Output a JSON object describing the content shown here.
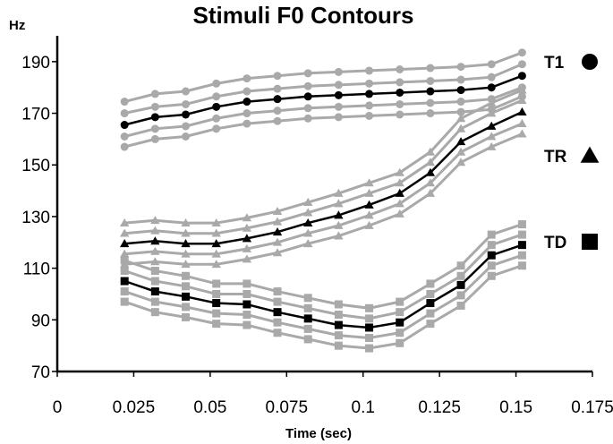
{
  "chart_data": {
    "type": "line",
    "title": "Stimuli F0 Contours",
    "xlabel": "Time (sec)",
    "ylabel": "Hz",
    "xlim": [
      0,
      0.175
    ],
    "ylim": [
      70,
      200
    ],
    "x_tick_labels": [
      "0",
      "0.025",
      "0.05",
      "0.075",
      "0.1",
      "0.125",
      "0.15",
      "0.175"
    ],
    "x_ticks": [
      0,
      0.025,
      0.05,
      0.075,
      0.1,
      0.125,
      0.15,
      0.175
    ],
    "y_tick_labels": [
      "70",
      "90",
      "110",
      "130",
      "150",
      "170",
      "190"
    ],
    "y_ticks": [
      70,
      90,
      110,
      130,
      150,
      170,
      190
    ],
    "x": [
      0.022,
      0.032,
      0.042,
      0.052,
      0.062,
      0.072,
      0.082,
      0.092,
      0.102,
      0.112,
      0.122,
      0.132,
      0.142,
      0.152
    ],
    "legend": [
      {
        "label": "T1",
        "marker": "circle"
      },
      {
        "label": "TR",
        "marker": "triangle"
      },
      {
        "label": "TD",
        "marker": "square"
      }
    ],
    "series": [
      {
        "group": "T1",
        "marker": "circle",
        "color": "#a9a9a9",
        "values": [
          174.5,
          177.5,
          178.5,
          181.5,
          183.5,
          184.5,
          185.5,
          186,
          186.5,
          187,
          187.5,
          188,
          189,
          193.5
        ]
      },
      {
        "group": "T1",
        "marker": "circle",
        "color": "#a9a9a9",
        "values": [
          170,
          172.5,
          173.5,
          176.5,
          178.5,
          179.5,
          180.5,
          181,
          181.5,
          182,
          182.5,
          183,
          184,
          189
        ]
      },
      {
        "group": "T1",
        "marker": "circle",
        "color": "#000000",
        "values": [
          165.5,
          168.5,
          169.5,
          172.5,
          174.5,
          175.5,
          176.5,
          177,
          177.5,
          178,
          178.5,
          179,
          180,
          184.5
        ]
      },
      {
        "group": "T1",
        "marker": "circle",
        "color": "#a9a9a9",
        "values": [
          161,
          164,
          165,
          168,
          170,
          171,
          172,
          172.5,
          173,
          173.5,
          174,
          174.5,
          175.5,
          180
        ]
      },
      {
        "group": "T1",
        "marker": "circle",
        "color": "#a9a9a9",
        "values": [
          157,
          160,
          161,
          164,
          166,
          167,
          168,
          168.5,
          169,
          169.5,
          170,
          170.5,
          171.5,
          176.5
        ]
      },
      {
        "group": "TR",
        "marker": "triangle",
        "color": "#a9a9a9",
        "values": [
          127.5,
          128.5,
          127.5,
          127.5,
          129.5,
          132,
          135.5,
          139,
          143,
          147,
          155,
          168,
          174,
          179
        ]
      },
      {
        "group": "TR",
        "marker": "triangle",
        "color": "#a9a9a9",
        "values": [
          123.5,
          124.5,
          123.5,
          123.5,
          125.5,
          128,
          131.5,
          135,
          139,
          143,
          151,
          164,
          170,
          175
        ]
      },
      {
        "group": "TR",
        "marker": "triangle",
        "color": "#000000",
        "values": [
          119.5,
          120.5,
          119.5,
          119.5,
          121.5,
          124,
          127.5,
          130.5,
          134.5,
          139,
          147,
          159,
          165,
          170.5
        ]
      },
      {
        "group": "TR",
        "marker": "triangle",
        "color": "#a9a9a9",
        "values": [
          115.5,
          116.5,
          115.5,
          115.5,
          117.5,
          120,
          123.5,
          126.5,
          130.5,
          135,
          143,
          155,
          161,
          166
        ]
      },
      {
        "group": "TR",
        "marker": "triangle",
        "color": "#a9a9a9",
        "values": [
          111.5,
          112.5,
          111.5,
          111.5,
          113.5,
          116,
          119.5,
          122.5,
          126.5,
          131,
          139,
          151,
          157,
          162
        ]
      },
      {
        "group": "TD",
        "marker": "square",
        "color": "#a9a9a9",
        "values": [
          113,
          109,
          107,
          104,
          104,
          101,
          98.5,
          96,
          94.5,
          97,
          104,
          111,
          123,
          127
        ]
      },
      {
        "group": "TD",
        "marker": "square",
        "color": "#a9a9a9",
        "values": [
          109,
          105,
          103,
          100,
          100,
          97,
          94.5,
          92,
          90.5,
          93,
          100,
          107,
          119,
          123
        ]
      },
      {
        "group": "TD",
        "marker": "square",
        "color": "#000000",
        "values": [
          105,
          101,
          99,
          96.5,
          96,
          93,
          90.5,
          88,
          87,
          89,
          96.5,
          103.5,
          115,
          119
        ]
      },
      {
        "group": "TD",
        "marker": "square",
        "color": "#a9a9a9",
        "values": [
          101,
          97,
          95,
          92.5,
          92,
          89,
          86.5,
          84,
          83,
          85,
          92.5,
          99.5,
          111,
          115
        ]
      },
      {
        "group": "TD",
        "marker": "square",
        "color": "#a9a9a9",
        "values": [
          97,
          93,
          91,
          88.5,
          88,
          85,
          82.5,
          80,
          79,
          81,
          88.5,
          95.5,
          107,
          111
        ]
      }
    ]
  }
}
